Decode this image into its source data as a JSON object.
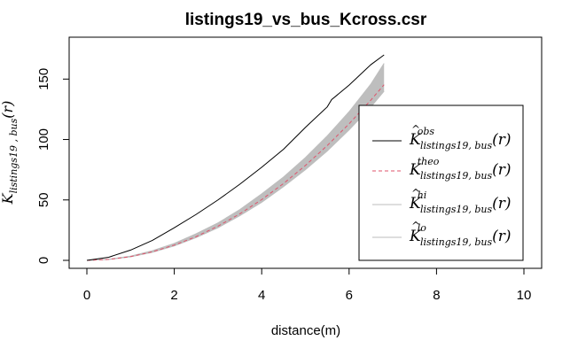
{
  "chart_data": {
    "type": "line",
    "title": "listings19_vs_bus_Kcross.csr",
    "xlabel": "distance(m)",
    "ylabel": {
      "main": "K",
      "subscript": "listings19 , bus",
      "arg": "(r)"
    },
    "xlim": [
      0,
      10
    ],
    "ylim": [
      0,
      170
    ],
    "x_ticks": [
      0,
      2,
      4,
      6,
      8,
      10
    ],
    "y_ticks": [
      0,
      50,
      100,
      150
    ],
    "grid": false,
    "legend_placement": "bottom-right",
    "envelope_color": "#bebebe",
    "series": [
      {
        "key": "obs",
        "name": {
          "main": "K",
          "hat": true,
          "superscript": "obs",
          "subscript": "listings19, bus",
          "arg": "(r)"
        },
        "color": "#000000",
        "dash": "solid",
        "x": [
          0,
          0.5,
          1.0,
          1.5,
          2.0,
          2.5,
          3.0,
          3.5,
          4.0,
          4.5,
          5.0,
          5.5,
          5.6,
          6.0,
          6.5,
          6.8
        ],
        "y": [
          0,
          2.6,
          8.5,
          16.5,
          27,
          38,
          50,
          63,
          77,
          92,
          110,
          127,
          133,
          145,
          162,
          170
        ]
      },
      {
        "key": "theo",
        "name": {
          "main": "K",
          "hat": false,
          "superscript": "theo",
          "subscript": "listings19, bus",
          "arg": "(r)"
        },
        "color": "#df536b",
        "dash": "dashed",
        "x": [
          0,
          0.5,
          1.0,
          1.5,
          2.0,
          2.5,
          3.0,
          3.5,
          4.0,
          4.5,
          5.0,
          5.5,
          6.0,
          6.5,
          6.8
        ],
        "y": [
          0,
          0.8,
          3.1,
          7.1,
          12.6,
          19.6,
          28.3,
          38.5,
          50.3,
          63.6,
          78.5,
          95,
          113,
          132.7,
          145.3
        ]
      },
      {
        "key": "hi",
        "name": {
          "main": "K",
          "hat": true,
          "superscript": "hi",
          "subscript": "listings19, bus",
          "arg": "(r)"
        },
        "color": "#bebebe",
        "dash": "solid",
        "x": [
          0,
          0.5,
          1.0,
          1.5,
          2.0,
          2.5,
          3.0,
          3.5,
          4.0,
          4.5,
          5.0,
          5.5,
          6.0,
          6.5,
          6.8
        ],
        "y": [
          0,
          0.9,
          3.5,
          8,
          14,
          22,
          31,
          42,
          55,
          69,
          85,
          103,
          123,
          146,
          163
        ]
      },
      {
        "key": "lo",
        "name": {
          "main": "K",
          "hat": true,
          "superscript": "lo",
          "subscript": "listings19, bus",
          "arg": "(r)"
        },
        "color": "#bebebe",
        "dash": "solid",
        "x": [
          0,
          0.5,
          1.0,
          1.5,
          2.0,
          2.5,
          3.0,
          3.5,
          4.0,
          4.5,
          5.0,
          5.5,
          6.0,
          6.5,
          6.8
        ],
        "y": [
          0,
          0.7,
          2.9,
          6.7,
          12,
          18.8,
          27,
          37,
          48,
          61,
          75,
          90.5,
          108,
          127,
          140
        ]
      }
    ]
  }
}
